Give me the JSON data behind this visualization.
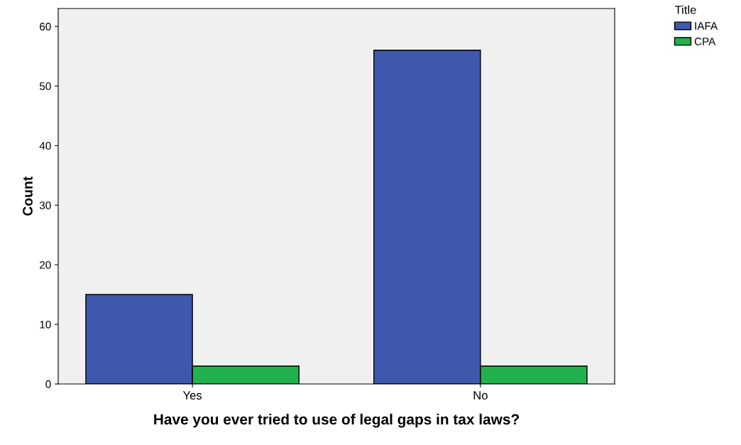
{
  "chart_data": {
    "type": "bar",
    "xlabel": "Have you ever tried to use of legal gaps in tax laws?",
    "ylabel": "Count",
    "legend_title": "Title",
    "categories": [
      "Yes",
      "No"
    ],
    "series": [
      {
        "name": "IAFA",
        "color": "#3e58ac",
        "values": [
          15,
          56
        ]
      },
      {
        "name": "CPA",
        "color": "#22b14c",
        "values": [
          3,
          3
        ]
      }
    ],
    "ylim": [
      0,
      63
    ],
    "yticks": [
      0,
      10,
      20,
      30,
      40,
      50,
      60
    ],
    "grid": false,
    "legend": "top right"
  }
}
